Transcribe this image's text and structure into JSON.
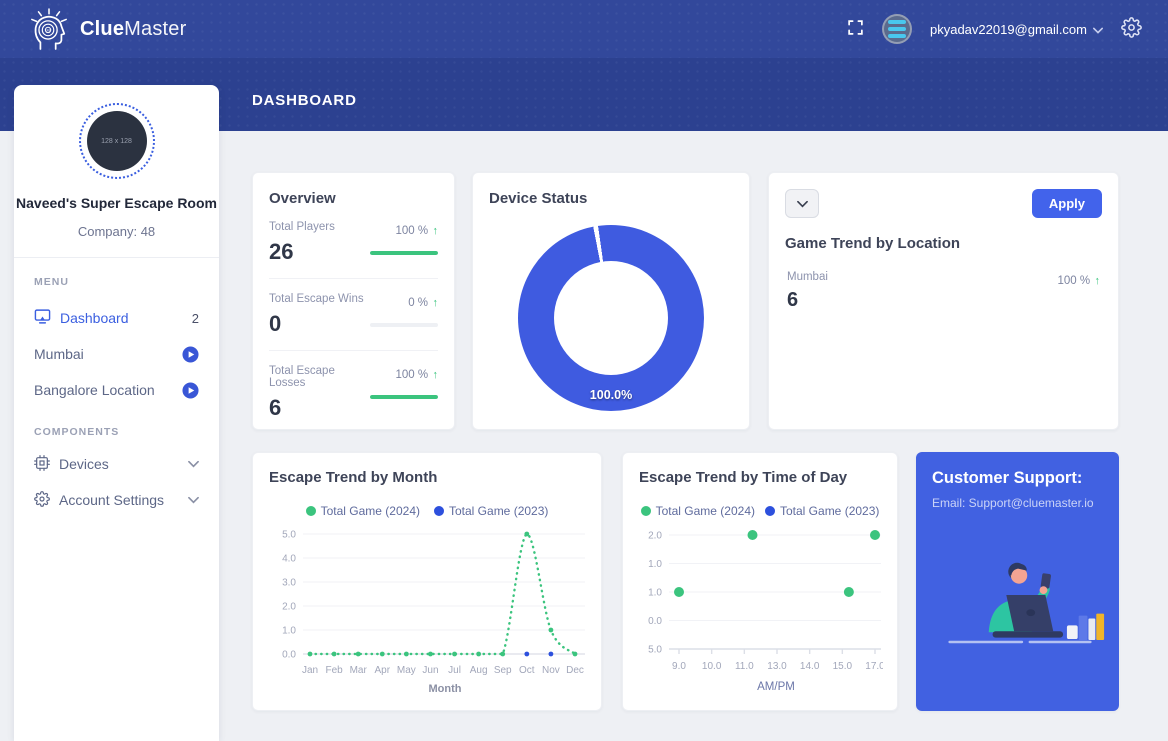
{
  "navbar": {
    "brand_bold": "Clue",
    "brand_light": "Master",
    "user_email": "pkyadav22019@gmail.com"
  },
  "page": {
    "title": "DASHBOARD"
  },
  "sidebar": {
    "avatar_placeholder": "128 x 128",
    "org_name": "Naveed's Super Escape Room",
    "company": "Company: 48",
    "menu_heading": "MENU",
    "menu": [
      {
        "label": "Dashboard",
        "badge": "2"
      },
      {
        "label": "Mumbai"
      },
      {
        "label": "Bangalore Location"
      }
    ],
    "components_heading": "COMPONENTS",
    "components": [
      {
        "label": "Devices"
      },
      {
        "label": "Account Settings"
      }
    ]
  },
  "overview": {
    "title": "Overview",
    "stats": [
      {
        "label": "Total Players",
        "value": "26",
        "percent": "100 %",
        "bar": 100
      },
      {
        "label": "Total Escape Wins",
        "value": "0",
        "percent": "0 %",
        "bar": 0
      },
      {
        "label": "Total Escape Losses",
        "value": "6",
        "percent": "100 %",
        "bar": 100
      }
    ]
  },
  "device_status": {
    "title": "Device Status"
  },
  "game_trend": {
    "title": "Game Trend by Location",
    "apply_label": "Apply",
    "rows": [
      {
        "label": "Mumbai",
        "value": "6",
        "percent": "100 %"
      }
    ]
  },
  "support": {
    "title": "Customer Support:",
    "email": "Email: Support@cluemaster.io"
  },
  "icons": {
    "up_arrow": "↑"
  },
  "colors": {
    "accent_blue": "#4263eb",
    "donut_blue": "#3f5be0",
    "green": "#3bc47e",
    "series_blue": "#2d50dd",
    "navbar_blue": "#32489b",
    "band_blue": "#2c4190",
    "support_blue": "#4161e1"
  },
  "chart_data": [
    {
      "type": "pie",
      "variant": "donut",
      "title": "Device Status",
      "slices": [
        {
          "label": "100.0%",
          "value": 100.0,
          "color": "#3f5be0"
        }
      ],
      "gap_degrees": 3,
      "gap_position": "top"
    },
    {
      "type": "line",
      "title": "Escape Trend by Month",
      "xlabel": "Month",
      "categories": [
        "Jan",
        "Feb",
        "Mar",
        "Apr",
        "May",
        "Jun",
        "Jul",
        "Aug",
        "Sep",
        "Oct",
        "Nov",
        "Dec"
      ],
      "y_ticks": [
        "5.0",
        "4.0",
        "3.0",
        "2.0",
        "1.0",
        "0.0"
      ],
      "ylim": [
        0,
        5
      ],
      "grid": true,
      "legend_position": "top",
      "series": [
        {
          "name": "Total Game (2024)",
          "color": "#3bc47e",
          "style": "dotted",
          "values": [
            0,
            0,
            0,
            0,
            0,
            0,
            0,
            0,
            0,
            5,
            1,
            0
          ]
        },
        {
          "name": "Total Game (2023)",
          "color": "#2d50dd",
          "points": [
            {
              "category": "Oct",
              "value": 0
            },
            {
              "category": "Nov",
              "value": 0
            }
          ]
        }
      ]
    },
    {
      "type": "scatter",
      "title": "Escape Trend by Time of Day",
      "xlabel": "AM/PM",
      "x_ticks": [
        "9.0",
        "10.0",
        "11.0",
        "13.0",
        "14.0",
        "15.0",
        "17.0"
      ],
      "y_tick_labels_top_to_bottom": [
        "2.0",
        "1.0",
        "1.0",
        "0.0",
        "5.0"
      ],
      "grid": true,
      "legend_position": "top",
      "series": [
        {
          "name": "Total Game (2024)",
          "color": "#3bc47e",
          "points": [
            {
              "x": 9.0,
              "y": 1.0,
              "tick_x": 0,
              "row": 2
            },
            {
              "x": 11.3,
              "y": 2.0,
              "tick_x": 2.25,
              "row": 0
            },
            {
              "x": 15.3,
              "y": 1.0,
              "tick_x": 5.2,
              "row": 2
            },
            {
              "x": 17.0,
              "y": 2.0,
              "tick_x": 6,
              "row": 0
            }
          ]
        },
        {
          "name": "Total Game (2023)",
          "color": "#2d50dd",
          "points": []
        }
      ]
    }
  ]
}
